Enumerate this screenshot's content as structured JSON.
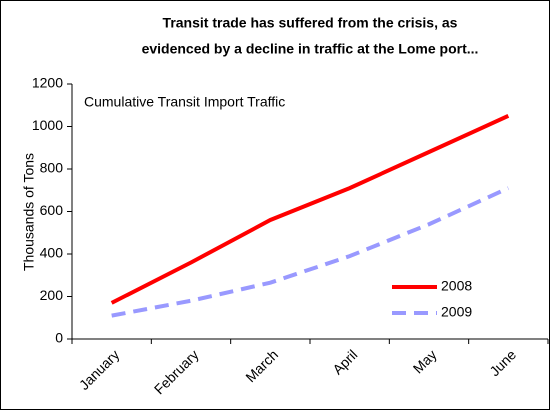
{
  "chart_data": {
    "type": "line",
    "title": [
      "Transit trade has suffered from the crisis, as",
      "evidenced by a decline in traffic at the Lome port..."
    ],
    "annotation": "Cumulative Transit Import Traffic",
    "y_label": "Thousands of Tons",
    "categories": [
      "January",
      "February",
      "March",
      "April",
      "May",
      "June"
    ],
    "series": [
      {
        "name": "2008",
        "color": "#ff0000",
        "dashed": false,
        "values": [
          170,
          360,
          560,
          710,
          880,
          1050
        ]
      },
      {
        "name": "2009",
        "color": "#9999ff",
        "dashed": true,
        "values": [
          110,
          180,
          265,
          390,
          540,
          710
        ]
      }
    ],
    "ylim": [
      0,
      1200
    ],
    "yticks": [
      0,
      200,
      400,
      600,
      800,
      1000,
      1200
    ],
    "grid": false,
    "legend_position": "lower right"
  }
}
